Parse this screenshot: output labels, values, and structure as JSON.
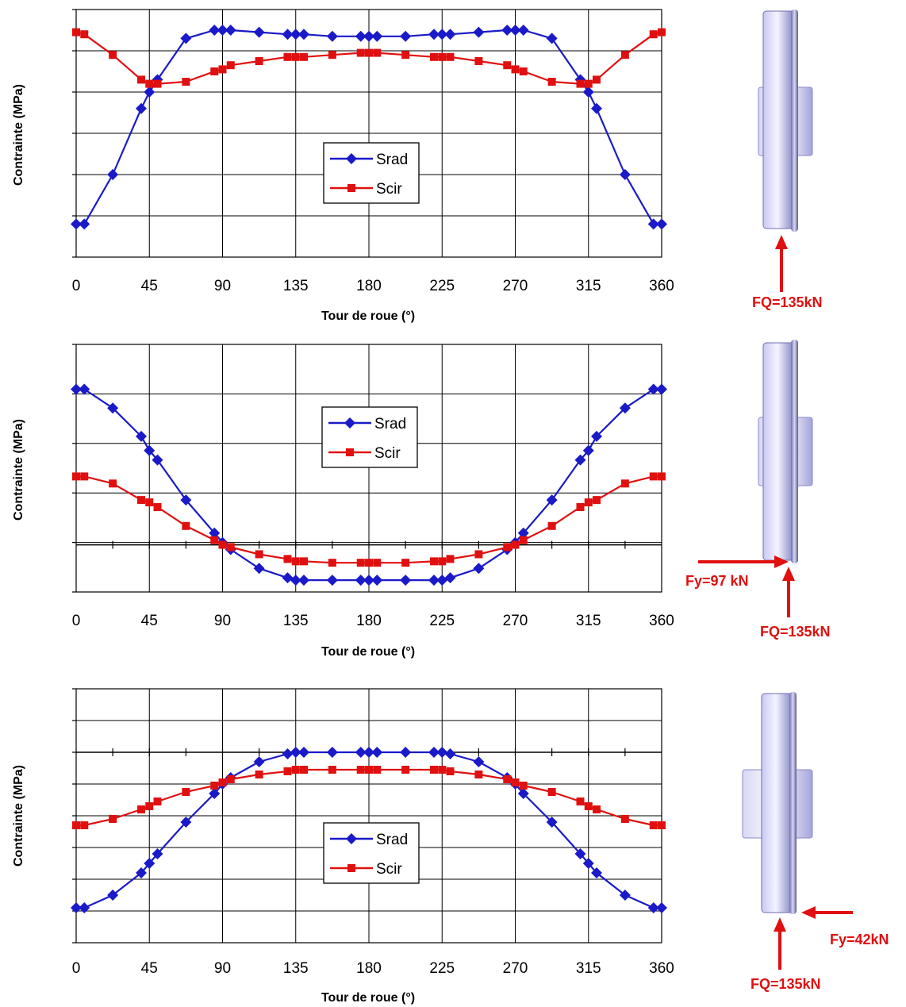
{
  "colors": {
    "srad": "#1a1ac8",
    "scir": "#e01010",
    "force": "#e01010",
    "grid": "#000000"
  },
  "chart_data": [
    {
      "type": "line",
      "xlabel": "Tour de roue (°)",
      "ylabel": "Contrainte (MPa)",
      "xlim": [
        0,
        360
      ],
      "ylim": [
        0,
        6
      ],
      "x_ticks": [
        "0",
        "45",
        "90",
        "135",
        "180",
        "225",
        "270",
        "315",
        "360"
      ],
      "legend": "center",
      "grid": true,
      "series": [
        {
          "name": "Srad",
          "marker": "diamond",
          "x": [
            0,
            5,
            22.5,
            40,
            45,
            50,
            67.5,
            85,
            90,
            95,
            112.5,
            130,
            135,
            140,
            157.5,
            175,
            180,
            185,
            202.5,
            220,
            225,
            230,
            247.5,
            265,
            270,
            275,
            292.5,
            310,
            315,
            320,
            337.5,
            355,
            360
          ],
          "y": [
            0.8,
            0.8,
            2.0,
            3.6,
            4.0,
            4.3,
            5.3,
            5.5,
            5.5,
            5.5,
            5.45,
            5.4,
            5.4,
            5.4,
            5.35,
            5.35,
            5.35,
            5.35,
            5.35,
            5.4,
            5.4,
            5.4,
            5.45,
            5.5,
            5.5,
            5.5,
            5.3,
            4.3,
            4.0,
            3.6,
            2.0,
            0.8,
            0.8
          ]
        },
        {
          "name": "Scir",
          "marker": "square",
          "x": [
            0,
            5,
            22.5,
            40,
            45,
            50,
            67.5,
            85,
            90,
            95,
            112.5,
            130,
            135,
            140,
            157.5,
            175,
            180,
            185,
            202.5,
            220,
            225,
            230,
            247.5,
            265,
            270,
            275,
            292.5,
            310,
            315,
            320,
            337.5,
            355,
            360
          ],
          "y": [
            5.45,
            5.4,
            4.9,
            4.3,
            4.2,
            4.2,
            4.25,
            4.5,
            4.55,
            4.65,
            4.75,
            4.85,
            4.85,
            4.85,
            4.9,
            4.95,
            4.95,
            4.95,
            4.9,
            4.85,
            4.85,
            4.85,
            4.75,
            4.65,
            4.55,
            4.5,
            4.25,
            4.2,
            4.2,
            4.3,
            4.9,
            5.4,
            5.45
          ]
        }
      ]
    },
    {
      "type": "line",
      "xlabel": "Tour de roue (°)",
      "ylabel": "Contrainte (MPa)",
      "xlim": [
        0,
        360
      ],
      "ylim": [
        -1,
        4.25
      ],
      "zero_line": 0,
      "x_ticks": [
        "0",
        "45",
        "90",
        "135",
        "180",
        "225",
        "270",
        "315",
        "360"
      ],
      "legend": "center",
      "grid": true,
      "series": [
        {
          "name": "Srad",
          "marker": "diamond",
          "x": [
            0,
            5,
            22.5,
            40,
            45,
            50,
            67.5,
            85,
            90,
            95,
            112.5,
            130,
            135,
            140,
            157.5,
            175,
            180,
            185,
            202.5,
            220,
            225,
            230,
            247.5,
            265,
            270,
            275,
            292.5,
            310,
            315,
            320,
            337.5,
            355,
            360
          ],
          "y": [
            3.3,
            3.3,
            2.9,
            2.3,
            2.0,
            1.8,
            0.95,
            0.25,
            0.05,
            -0.1,
            -0.5,
            -0.7,
            -0.75,
            -0.75,
            -0.75,
            -0.75,
            -0.75,
            -0.75,
            -0.75,
            -0.75,
            -0.75,
            -0.7,
            -0.5,
            -0.1,
            0.05,
            0.25,
            0.95,
            1.8,
            2.0,
            2.3,
            2.9,
            3.3,
            3.3
          ]
        },
        {
          "name": "Scir",
          "marker": "square",
          "x": [
            0,
            5,
            22.5,
            40,
            45,
            50,
            67.5,
            85,
            90,
            95,
            112.5,
            130,
            135,
            140,
            157.5,
            175,
            180,
            185,
            202.5,
            220,
            225,
            230,
            247.5,
            265,
            270,
            275,
            292.5,
            310,
            315,
            320,
            337.5,
            355,
            360
          ],
          "y": [
            1.45,
            1.45,
            1.3,
            0.95,
            0.9,
            0.8,
            0.4,
            0.1,
            0.0,
            -0.05,
            -0.2,
            -0.3,
            -0.35,
            -0.35,
            -0.38,
            -0.38,
            -0.38,
            -0.38,
            -0.38,
            -0.35,
            -0.35,
            -0.3,
            -0.2,
            -0.05,
            0.0,
            0.1,
            0.4,
            0.8,
            0.9,
            0.95,
            1.3,
            1.45,
            1.45
          ]
        }
      ]
    },
    {
      "type": "line",
      "xlabel": "Tour de roue (°)",
      "ylabel": "Contrainte (MPa)",
      "xlim": [
        0,
        360
      ],
      "ylim": [
        -6,
        2
      ],
      "zero_line": 0,
      "x_ticks": [
        "0",
        "45",
        "90",
        "135",
        "180",
        "225",
        "270",
        "315",
        "360"
      ],
      "legend": "center-bottom",
      "grid": true,
      "series": [
        {
          "name": "Srad",
          "marker": "diamond",
          "x": [
            0,
            5,
            22.5,
            40,
            45,
            50,
            67.5,
            85,
            90,
            95,
            112.5,
            130,
            135,
            140,
            157.5,
            175,
            180,
            185,
            202.5,
            220,
            225,
            230,
            247.5,
            265,
            270,
            275,
            292.5,
            310,
            315,
            320,
            337.5,
            355,
            360
          ],
          "y": [
            -4.9,
            -4.9,
            -4.5,
            -3.8,
            -3.5,
            -3.2,
            -2.2,
            -1.3,
            -1.0,
            -0.8,
            -0.3,
            -0.05,
            0,
            0,
            0,
            0,
            0,
            0,
            0,
            0,
            0,
            -0.05,
            -0.3,
            -0.8,
            -1.0,
            -1.3,
            -2.2,
            -3.2,
            -3.5,
            -3.8,
            -4.5,
            -4.9,
            -4.9
          ]
        },
        {
          "name": "Scir",
          "marker": "square",
          "x": [
            0,
            5,
            22.5,
            40,
            45,
            50,
            67.5,
            85,
            90,
            95,
            112.5,
            130,
            135,
            140,
            157.5,
            175,
            180,
            185,
            202.5,
            220,
            225,
            230,
            247.5,
            265,
            270,
            275,
            292.5,
            310,
            315,
            320,
            337.5,
            355,
            360
          ],
          "y": [
            -2.3,
            -2.3,
            -2.1,
            -1.8,
            -1.7,
            -1.55,
            -1.25,
            -1.05,
            -0.95,
            -0.85,
            -0.7,
            -0.6,
            -0.55,
            -0.55,
            -0.55,
            -0.55,
            -0.55,
            -0.55,
            -0.55,
            -0.55,
            -0.55,
            -0.6,
            -0.7,
            -0.85,
            -0.95,
            -1.05,
            -1.25,
            -1.55,
            -1.7,
            -1.8,
            -2.1,
            -2.3,
            -2.3
          ]
        }
      ]
    }
  ],
  "wheels": [
    {
      "forces": [
        "FQ=135kN"
      ]
    },
    {
      "forces": [
        "Fy=97 kN",
        "FQ=135kN"
      ]
    },
    {
      "forces": [
        "Fy=42kN",
        "FQ=135kN"
      ]
    }
  ]
}
